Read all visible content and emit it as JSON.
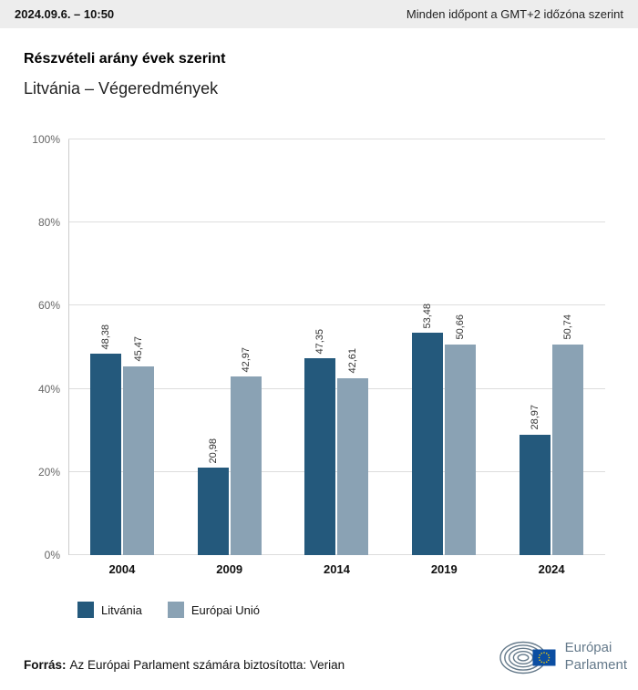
{
  "header": {
    "datetime": "2024.09.6. – 10:50",
    "timezone_note": "Minden időpont a GMT+2 időzóna szerint"
  },
  "chart_data": {
    "type": "bar",
    "title": "Részvételi arány évek szerint",
    "subtitle": "Litvánia – Végeredmények",
    "categories": [
      "2004",
      "2009",
      "2014",
      "2019",
      "2024"
    ],
    "series": [
      {
        "name": "Litvánia",
        "color": "#24597c",
        "values": [
          48.38,
          20.98,
          47.35,
          53.48,
          28.97
        ],
        "labels": [
          "48,38",
          "20,98",
          "47,35",
          "53,48",
          "28,97"
        ]
      },
      {
        "name": "Európai Unió",
        "color": "#8aa2b4",
        "values": [
          45.47,
          42.97,
          42.61,
          50.66,
          50.74
        ],
        "labels": [
          "45,47",
          "42,97",
          "42,61",
          "50,66",
          "50,74"
        ]
      }
    ],
    "ylim": [
      0,
      100
    ],
    "yticks": [
      0,
      20,
      40,
      60,
      80,
      100
    ],
    "ytick_suffix": "%",
    "grid": true,
    "legend_position": "bottom"
  },
  "footer": {
    "source_label": "Forrás:",
    "source_text": "Az Európai Parlament számára biztosította: Verian"
  },
  "logo": {
    "line1": "Európai",
    "line2": "Parlament"
  }
}
